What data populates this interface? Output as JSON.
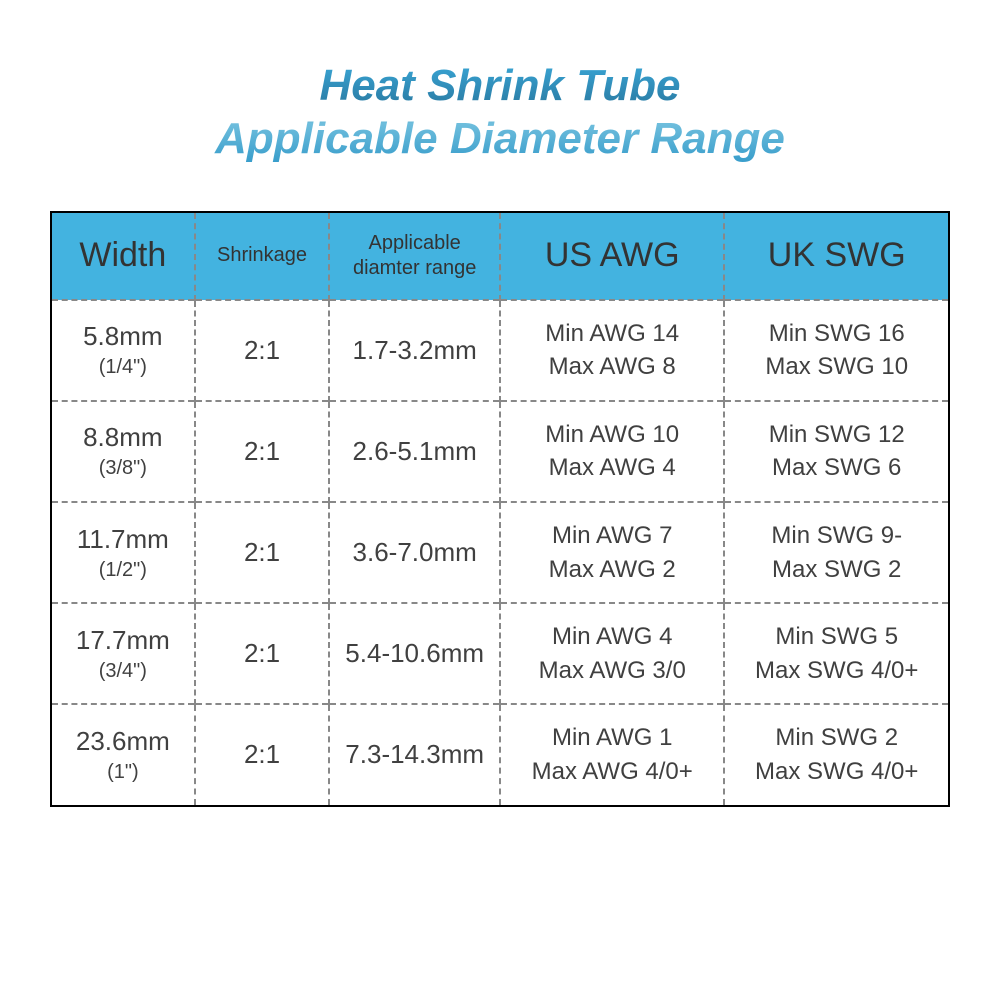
{
  "title_line1": "Heat Shrink Tube",
  "title_line2": "Applicable Diameter Range",
  "colors": {
    "header_bg": "#43b3e0",
    "border": "#000000",
    "dash": "#888888",
    "text": "#404040",
    "title_gradient_top": "#3aa8d8",
    "title_gradient_bot": "#339ac9",
    "background": "#ffffff"
  },
  "table": {
    "columns": [
      {
        "label": "Width",
        "fontsize": 34,
        "width_pct": 16
      },
      {
        "label": "Shrinkage",
        "fontsize": 20,
        "width_pct": 15
      },
      {
        "label": "Applicable diamter range",
        "fontsize": 20,
        "width_pct": 19
      },
      {
        "label": "US AWG",
        "fontsize": 34,
        "width_pct": 25
      },
      {
        "label": "UK SWG",
        "fontsize": 34,
        "width_pct": 25
      }
    ],
    "rows": [
      {
        "width_mm": "5.8mm",
        "width_in": "(1/4\")",
        "shrinkage": "2:1",
        "range": "1.7-3.2mm",
        "us_min": "Min AWG 14",
        "us_max": "Max AWG 8",
        "uk_min": "Min SWG 16",
        "uk_max": "Max SWG 10"
      },
      {
        "width_mm": "8.8mm",
        "width_in": "(3/8\")",
        "shrinkage": "2:1",
        "range": "2.6-5.1mm",
        "us_min": "Min AWG 10",
        "us_max": "Max AWG 4",
        "uk_min": "Min SWG 12",
        "uk_max": "Max SWG 6"
      },
      {
        "width_mm": "11.7mm",
        "width_in": "(1/2\")",
        "shrinkage": "2:1",
        "range": "3.6-7.0mm",
        "us_min": "Min AWG 7",
        "us_max": "Max AWG 2",
        "uk_min": "Min SWG 9-",
        "uk_max": "Max SWG 2"
      },
      {
        "width_mm": "17.7mm",
        "width_in": "(3/4\")",
        "shrinkage": "2:1",
        "range": "5.4-10.6mm",
        "us_min": "Min AWG 4",
        "us_max": "Max AWG 3/0",
        "uk_min": "Min SWG 5",
        "uk_max": "Max SWG 4/0+"
      },
      {
        "width_mm": "23.6mm",
        "width_in": "(1\")",
        "shrinkage": "2:1",
        "range": "7.3-14.3mm",
        "us_min": "Min AWG 1",
        "us_max": "Max AWG 4/0+",
        "uk_min": "Min SWG 2",
        "uk_max": "Max SWG 4/0+"
      }
    ]
  }
}
